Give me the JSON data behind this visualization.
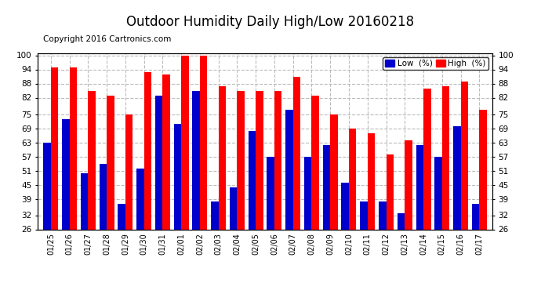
{
  "title": "Outdoor Humidity Daily High/Low 20160218",
  "copyright": "Copyright 2016 Cartronics.com",
  "dates": [
    "01/25",
    "01/26",
    "01/27",
    "01/28",
    "01/29",
    "01/30",
    "01/31",
    "02/01",
    "02/02",
    "02/03",
    "02/04",
    "02/05",
    "02/06",
    "02/07",
    "02/08",
    "02/09",
    "02/10",
    "02/11",
    "02/12",
    "02/13",
    "02/14",
    "02/15",
    "02/16",
    "02/17"
  ],
  "high": [
    95,
    95,
    85,
    83,
    75,
    93,
    92,
    100,
    100,
    87,
    85,
    85,
    85,
    91,
    83,
    75,
    69,
    67,
    58,
    64,
    86,
    87,
    89,
    77
  ],
  "low": [
    63,
    73,
    50,
    54,
    37,
    52,
    83,
    71,
    85,
    38,
    44,
    68,
    57,
    77,
    57,
    62,
    46,
    38,
    38,
    33,
    62,
    57,
    70,
    37
  ],
  "high_color": "#ff0000",
  "low_color": "#0000cc",
  "bg_color": "#ffffff",
  "ymin": 26,
  "ymax": 101,
  "yticks": [
    26,
    32,
    39,
    45,
    51,
    57,
    63,
    69,
    75,
    82,
    88,
    94,
    100
  ],
  "grid_color": "#bbbbbb",
  "title_fontsize": 12,
  "copyright_fontsize": 7.5,
  "legend_low_label": "Low  (%)",
  "legend_high_label": "High  (%)"
}
